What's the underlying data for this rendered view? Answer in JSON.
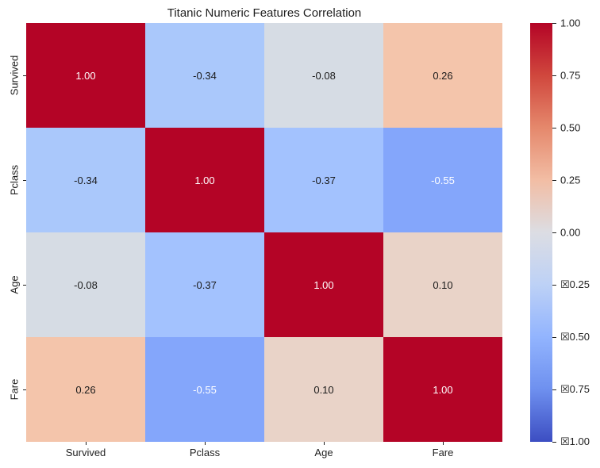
{
  "chart_data": {
    "type": "heatmap",
    "title": "Titanic Numeric Features Correlation",
    "x_categories": [
      "Survived",
      "Pclass",
      "Age",
      "Fare"
    ],
    "y_categories": [
      "Survived",
      "Pclass",
      "Age",
      "Fare"
    ],
    "matrix": [
      [
        1.0,
        -0.34,
        -0.08,
        0.26
      ],
      [
        -0.34,
        1.0,
        -0.37,
        -0.55
      ],
      [
        -0.08,
        -0.37,
        1.0,
        0.1
      ],
      [
        0.26,
        -0.55,
        0.1,
        1.0
      ]
    ],
    "cell_labels": [
      [
        "1.00",
        "-0.34",
        "-0.08",
        "0.26"
      ],
      [
        "-0.34",
        "1.00",
        "-0.37",
        "-0.55"
      ],
      [
        "-0.08",
        "-0.37",
        "1.00",
        "0.10"
      ],
      [
        "0.26",
        "-0.55",
        "0.10",
        "1.00"
      ]
    ],
    "cell_colors": [
      [
        "#b40426",
        "#aac8fb",
        "#d6dce4",
        "#f4c5ab"
      ],
      [
        "#aac8fb",
        "#b40426",
        "#a3c2fe",
        "#84a6fb"
      ],
      [
        "#d6dce4",
        "#a3c2fe",
        "#b40426",
        "#e9d3c8"
      ],
      [
        "#f4c5ab",
        "#84a6fb",
        "#e9d3c8",
        "#b40426"
      ]
    ],
    "cell_text_colors": [
      [
        "#ffffff",
        "#1a1a1a",
        "#1a1a1a",
        "#1a1a1a"
      ],
      [
        "#1a1a1a",
        "#ffffff",
        "#1a1a1a",
        "#ffffff"
      ],
      [
        "#1a1a1a",
        "#1a1a1a",
        "#ffffff",
        "#1a1a1a"
      ],
      [
        "#1a1a1a",
        "#ffffff",
        "#1a1a1a",
        "#ffffff"
      ]
    ],
    "colormap": "coolwarm",
    "vmin": -1.0,
    "vmax": 1.0,
    "grid": false,
    "legend_position": "right-colorbar",
    "colorbar_tick_labels": [
      "1.00",
      "0.75",
      "0.50",
      "0.25",
      "0.00",
      "☒0.25",
      "☒0.50",
      "☒0.75",
      "☒1.00"
    ],
    "colorbar_gradient_top_to_bottom": [
      "#b40426",
      "#d0473d",
      "#e5886c",
      "#f2bda4",
      "#dcdde3",
      "#bdd1f6",
      "#92b4fe",
      "#6e90ef",
      "#3c4ec2"
    ]
  }
}
